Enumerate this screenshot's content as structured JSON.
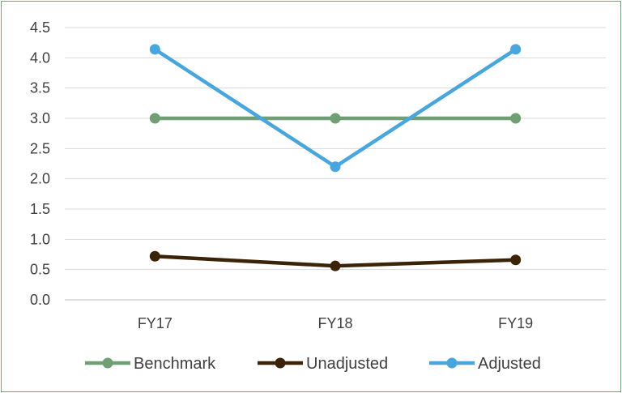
{
  "chart_data": {
    "type": "line",
    "title": "",
    "xlabel": "",
    "ylabel": "",
    "categories": [
      "FY17",
      "FY18",
      "FY19"
    ],
    "ylim": [
      0,
      4.5
    ],
    "yticks": [
      "0.0",
      "0.5",
      "1.0",
      "1.5",
      "2.0",
      "2.5",
      "3.0",
      "3.5",
      "4.0",
      "4.5"
    ],
    "grid": true,
    "legend_position": "bottom",
    "series": [
      {
        "name": "Benchmark",
        "values": [
          3.0,
          3.0,
          3.0
        ],
        "color": "#6f9f73"
      },
      {
        "name": "Unadjusted",
        "values": [
          0.72,
          0.56,
          0.66
        ],
        "color": "#3b2308"
      },
      {
        "name": "Adjusted",
        "values": [
          4.14,
          2.2,
          4.14
        ],
        "color": "#49a6dd"
      }
    ]
  }
}
